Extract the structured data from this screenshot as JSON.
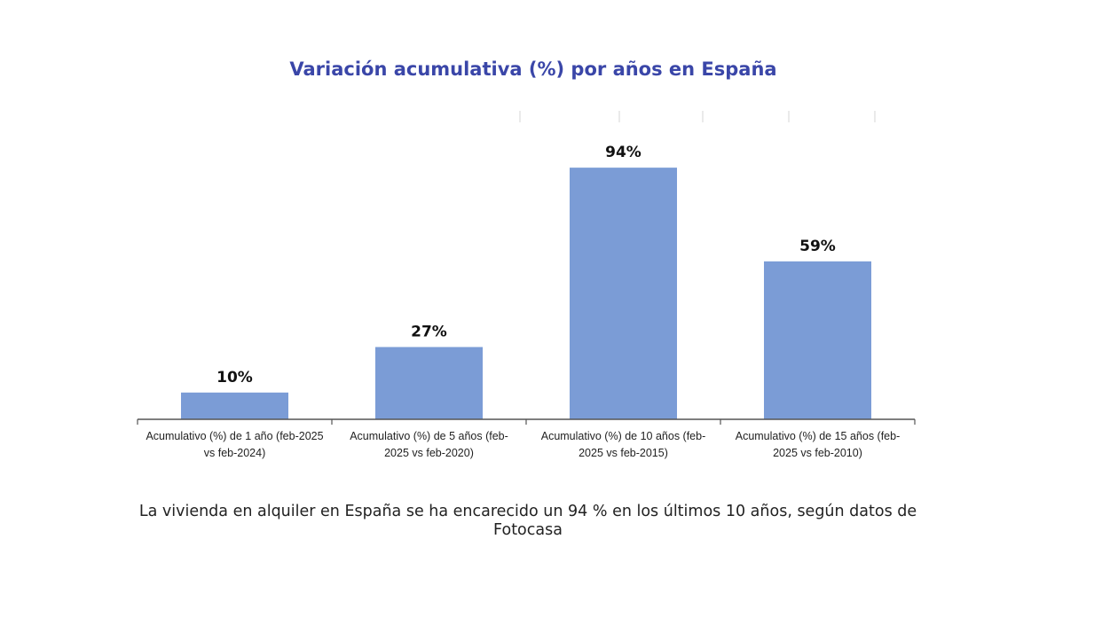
{
  "chart_data": {
    "type": "bar",
    "title": "Variación acumulativa (%) por años en España",
    "categories": [
      "Acumulativo (%) de 1 año (feb-2025 vs feb-2024)",
      "Acumulativo (%) de 5 años (feb-2025 vs feb-2020)",
      "Acumulativo (%) de 10 años (feb-2025 vs feb-2015)",
      "Acumulativo (%) de 15 años (feb-2025 vs feb-2010)"
    ],
    "category_lines": [
      [
        "Acumulativo (%) de 1 año (feb-2025",
        "vs feb-2024)"
      ],
      [
        "Acumulativo (%) de 5 años  (feb-",
        "2025 vs feb-2020)"
      ],
      [
        "Acumulativo (%) de 10 años (feb-",
        "2025 vs feb-2015)"
      ],
      [
        "Acumulativo (%) de 15 años (feb-",
        "2025 vs feb-2010)"
      ]
    ],
    "values": [
      10,
      27,
      94,
      59
    ],
    "data_labels": [
      "10%",
      "27%",
      "94%",
      "59%"
    ],
    "xlabel": "",
    "ylabel": "",
    "ylim": [
      0,
      100
    ],
    "grid": false,
    "legend": "none",
    "colors": {
      "bar": "#7b9cd6",
      "title": "#3a46a8",
      "axis": "#555555"
    }
  },
  "caption": "La vivienda en alquiler en España se ha encarecido un 94 % en los últimos 10 años, según datos de Fotocasa"
}
